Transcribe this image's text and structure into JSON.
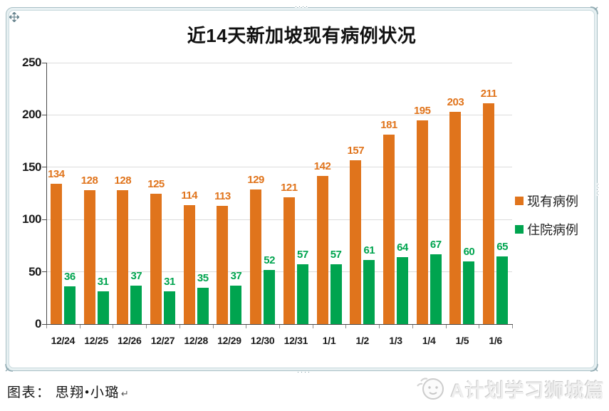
{
  "chart_data": {
    "type": "bar",
    "title": "近14天新加坡现有病例状况",
    "categories": [
      "12/24",
      "12/25",
      "12/26",
      "12/27",
      "12/28",
      "12/29",
      "12/30",
      "12/31",
      "1/1",
      "1/2",
      "1/3",
      "1/4",
      "1/5",
      "1/6"
    ],
    "series": [
      {
        "key": "existing-cases",
        "name": "现有病例",
        "color": "#E0741C",
        "values": [
          134,
          128,
          128,
          125,
          114,
          113,
          129,
          121,
          142,
          157,
          181,
          195,
          203,
          211
        ]
      },
      {
        "key": "hospitalized-cases",
        "name": "住院病例",
        "color": "#00A44F",
        "values": [
          36,
          31,
          37,
          31,
          35,
          37,
          52,
          57,
          57,
          61,
          64,
          67,
          60,
          65
        ]
      }
    ],
    "ylim": [
      0,
      250
    ],
    "yticks": [
      0,
      50,
      100,
      150,
      200,
      250
    ],
    "grid": true,
    "legend_position": "right"
  },
  "colors": {
    "axis": "#4a4a4a",
    "gridline": "#dcdcdc",
    "tick": "#8c8c8c"
  },
  "caption": {
    "label": "图表： 思翔•小璐",
    "return_mark": "↵"
  },
  "watermark": {
    "text": "A计划学习狮城篇"
  }
}
